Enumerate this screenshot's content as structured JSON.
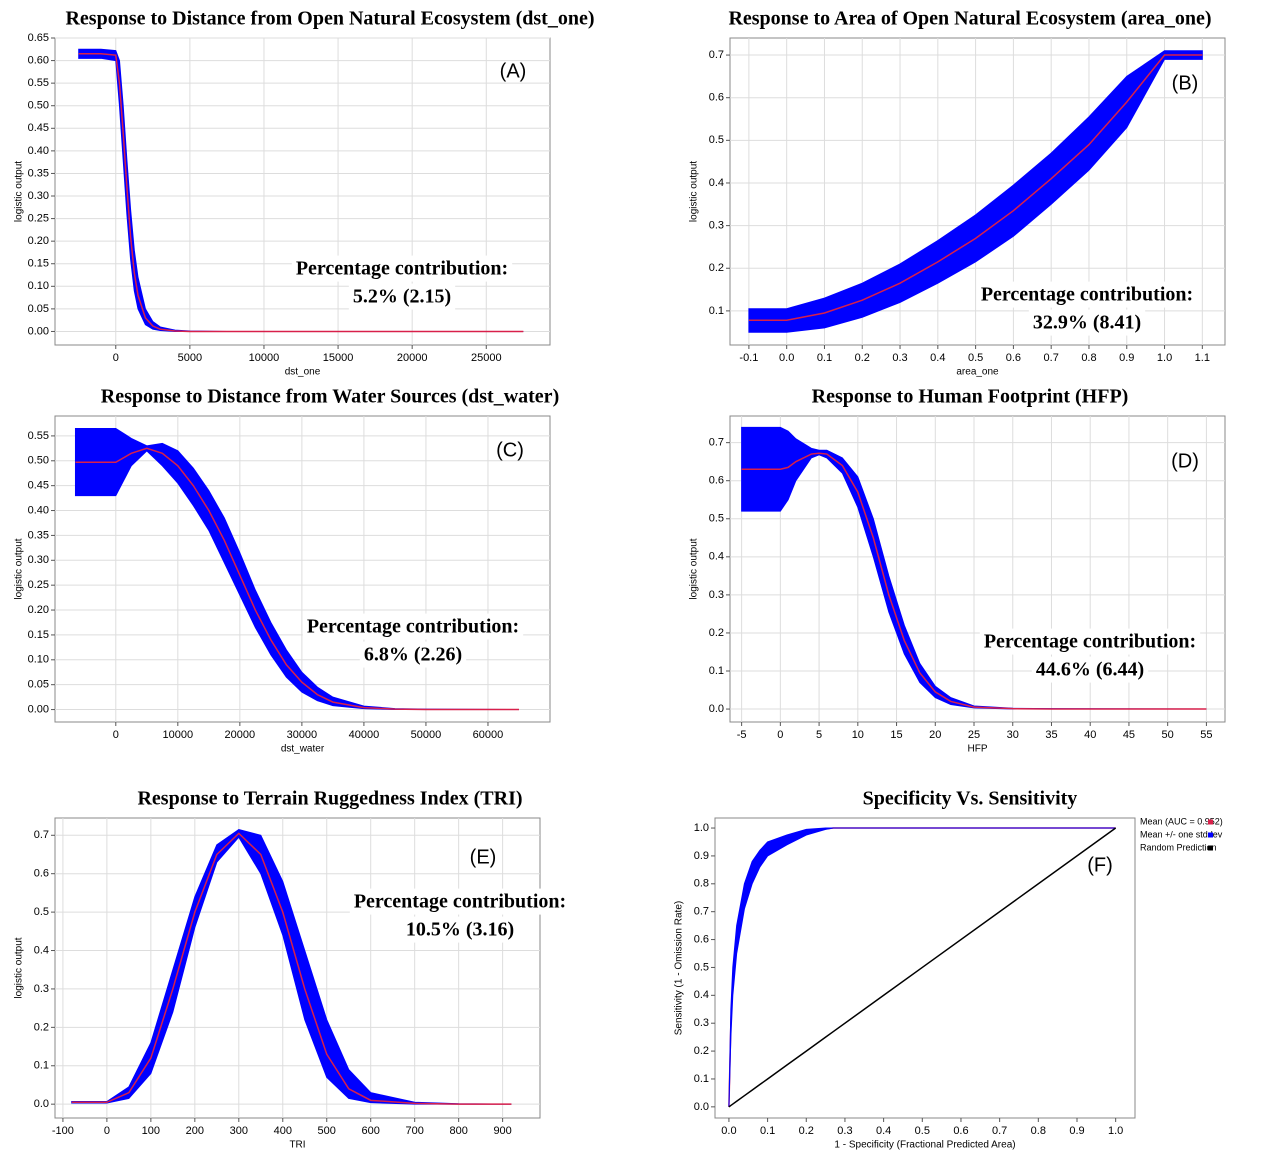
{
  "chart_data": [
    {
      "type": "line",
      "title": "Response to Distance from Open Natural Ecosystem (dst_one)",
      "xlabel": "dst_one",
      "ylabel": "logistic output",
      "panel_label": "(A)",
      "annotations": [
        "Percentage contribution:",
        "5.2% (2.15)"
      ],
      "grid": true,
      "xlim": [
        -4100,
        29300
      ],
      "xticks": [
        0,
        5000,
        10000,
        15000,
        20000,
        25000
      ],
      "ylim": [
        -0.03,
        0.65
      ],
      "yticks": [
        {
          "value": 0,
          "label": "0.00"
        },
        0.05,
        {
          "value": 0.1,
          "label": "0.10"
        },
        0.15,
        {
          "value": 0.2,
          "label": "0.20"
        },
        0.25,
        {
          "value": 0.3,
          "label": "0.30"
        },
        0.35,
        {
          "value": 0.4,
          "label": "0.40"
        },
        0.45,
        {
          "value": 0.5,
          "label": "0.50"
        },
        0.55,
        {
          "value": 0.6,
          "label": "0.60"
        },
        0.65
      ],
      "x": [
        -2500,
        -1000,
        0,
        250,
        500,
        750,
        1000,
        1250,
        1500,
        2000,
        2500,
        3000,
        4000,
        5000,
        7500,
        10000,
        15000,
        20000,
        25000,
        27500
      ],
      "series": [
        {
          "color": "#0000ff",
          "lower": [
            0.605,
            0.605,
            0.6,
            0.5,
            0.38,
            0.26,
            0.16,
            0.09,
            0.05,
            0.015,
            0.005,
            0.002,
            0,
            0,
            0,
            0,
            0,
            0,
            0,
            0
          ],
          "upper": [
            0.625,
            0.625,
            0.622,
            0.6,
            0.5,
            0.38,
            0.27,
            0.18,
            0.12,
            0.05,
            0.022,
            0.01,
            0.003,
            0.001,
            0,
            0,
            0,
            0,
            0,
            0
          ]
        },
        {
          "color": "#d8204a",
          "values": [
            0.615,
            0.615,
            0.612,
            0.55,
            0.44,
            0.32,
            0.21,
            0.13,
            0.08,
            0.03,
            0.012,
            0.005,
            0.001,
            0,
            0,
            0,
            0,
            0,
            0,
            0
          ]
        }
      ]
    },
    {
      "type": "line",
      "title": "Response to Area of Open Natural Ecosystem (area_one)",
      "xlabel": "area_one",
      "ylabel": "logistic output",
      "panel_label": "(B)",
      "annotations": [
        "Percentage contribution:",
        "32.9% (8.41)"
      ],
      "grid": true,
      "xlim": [
        -0.15,
        1.16
      ],
      "xticks": [
        -0.1,
        {
          "value": 0,
          "label": "0.0"
        },
        0.1,
        0.2,
        0.3,
        0.4,
        0.5,
        0.6,
        0.7,
        0.8,
        0.9,
        {
          "value": 1,
          "label": "1.0"
        },
        1.1
      ],
      "ylim": [
        0.02,
        0.74
      ],
      "yticks": [
        0.1,
        0.2,
        0.3,
        0.4,
        0.5,
        0.6,
        0.7
      ],
      "x": [
        -0.1,
        0,
        0.1,
        0.2,
        0.3,
        0.4,
        0.5,
        0.6,
        0.7,
        0.8,
        0.9,
        1,
        1.1
      ],
      "series": [
        {
          "color": "#0000ff",
          "lower": [
            0.05,
            0.05,
            0.06,
            0.085,
            0.12,
            0.165,
            0.215,
            0.275,
            0.35,
            0.43,
            0.53,
            0.69,
            0.69
          ],
          "upper": [
            0.105,
            0.105,
            0.13,
            0.165,
            0.21,
            0.265,
            0.325,
            0.395,
            0.47,
            0.555,
            0.65,
            0.71,
            0.71
          ]
        },
        {
          "color": "#d8204a",
          "values": [
            0.078,
            0.078,
            0.095,
            0.125,
            0.165,
            0.215,
            0.27,
            0.335,
            0.41,
            0.49,
            0.59,
            0.7,
            0.7
          ]
        }
      ]
    },
    {
      "type": "line",
      "title": "Response to Distance from Water Sources (dst_water)",
      "xlabel": "dst_water",
      "ylabel": "logistic output",
      "panel_label": "(C)",
      "annotations": [
        "Percentage contribution:",
        "6.8% (2.26)"
      ],
      "grid": true,
      "xlim": [
        -9800,
        70000
      ],
      "xticks": [
        0,
        10000,
        20000,
        30000,
        40000,
        50000,
        60000
      ],
      "ylim": [
        -0.025,
        0.59
      ],
      "yticks": [
        {
          "value": 0,
          "label": "0.00"
        },
        0.05,
        {
          "value": 0.1,
          "label": "0.10"
        },
        0.15,
        {
          "value": 0.2,
          "label": "0.20"
        },
        0.25,
        {
          "value": 0.3,
          "label": "0.30"
        },
        0.35,
        {
          "value": 0.4,
          "label": "0.40"
        },
        0.45,
        {
          "value": 0.5,
          "label": "0.50"
        },
        0.55
      ],
      "x": [
        -6500,
        0,
        2500,
        5000,
        7500,
        10000,
        12500,
        15000,
        17500,
        20000,
        22500,
        25000,
        27500,
        30000,
        32500,
        35000,
        40000,
        45000,
        50000,
        65000
      ],
      "series": [
        {
          "color": "#0000ff",
          "lower": [
            0.43,
            0.43,
            0.49,
            0.52,
            0.49,
            0.455,
            0.41,
            0.36,
            0.295,
            0.23,
            0.165,
            0.11,
            0.065,
            0.035,
            0.018,
            0.008,
            0.002,
            0,
            0,
            0
          ],
          "upper": [
            0.565,
            0.565,
            0.545,
            0.53,
            0.535,
            0.52,
            0.485,
            0.44,
            0.385,
            0.315,
            0.24,
            0.175,
            0.12,
            0.075,
            0.045,
            0.025,
            0.007,
            0.002,
            0.001,
            0
          ]
        },
        {
          "color": "#d8204a",
          "values": [
            0.497,
            0.497,
            0.515,
            0.525,
            0.515,
            0.49,
            0.45,
            0.4,
            0.34,
            0.27,
            0.2,
            0.14,
            0.09,
            0.055,
            0.03,
            0.015,
            0.004,
            0.001,
            0,
            0
          ]
        }
      ]
    },
    {
      "type": "line",
      "title": "Response to Human Footprint (HFP)",
      "xlabel": "HFP",
      "ylabel": "logistic output",
      "panel_label": "(D)",
      "annotations": [
        "Percentage contribution:",
        "44.6% (6.44)"
      ],
      "grid": true,
      "xlim": [
        -6.5,
        57.4
      ],
      "xticks": [
        -5,
        0,
        5,
        10,
        15,
        20,
        25,
        30,
        35,
        40,
        45,
        50,
        55
      ],
      "ylim": [
        -0.034,
        0.77
      ],
      "yticks": [
        {
          "value": 0,
          "label": "0.0"
        },
        0.1,
        0.2,
        0.3,
        0.4,
        0.5,
        0.6,
        0.7
      ],
      "x": [
        -5,
        0,
        1,
        2,
        4,
        5,
        6,
        8,
        10,
        12,
        14,
        16,
        18,
        20,
        22,
        25,
        30,
        35,
        55
      ],
      "series": [
        {
          "color": "#0000ff",
          "lower": [
            0.52,
            0.52,
            0.55,
            0.6,
            0.66,
            0.668,
            0.66,
            0.62,
            0.53,
            0.4,
            0.255,
            0.145,
            0.07,
            0.03,
            0.012,
            0.003,
            0,
            0,
            0
          ],
          "upper": [
            0.74,
            0.74,
            0.73,
            0.71,
            0.685,
            0.68,
            0.68,
            0.66,
            0.61,
            0.5,
            0.35,
            0.22,
            0.12,
            0.06,
            0.03,
            0.008,
            0.002,
            0.001,
            0
          ]
        },
        {
          "color": "#d8204a",
          "values": [
            0.63,
            0.63,
            0.635,
            0.65,
            0.67,
            0.672,
            0.67,
            0.64,
            0.57,
            0.45,
            0.3,
            0.18,
            0.095,
            0.045,
            0.02,
            0.005,
            0.001,
            0,
            0
          ]
        }
      ]
    },
    {
      "type": "line",
      "title": "Response to Terrain Ruggedness Index (TRI)",
      "xlabel": "TRI",
      "ylabel": "logistic output",
      "panel_label": "(E)",
      "annotations": [
        "Percentage contribution:",
        "10.5% (3.16)"
      ],
      "grid": true,
      "xlim": [
        -118,
        985
      ],
      "xticks": [
        -100,
        0,
        100,
        200,
        300,
        400,
        500,
        600,
        700,
        800,
        900
      ],
      "ylim": [
        -0.036,
        0.745
      ],
      "yticks": [
        {
          "value": 0,
          "label": "0.0"
        },
        0.1,
        0.2,
        0.3,
        0.4,
        0.5,
        0.6,
        0.7
      ],
      "x": [
        -80,
        0,
        50,
        100,
        150,
        200,
        250,
        300,
        350,
        400,
        450,
        500,
        550,
        600,
        700,
        800,
        920
      ],
      "series": [
        {
          "color": "#0000ff",
          "lower": [
            0.003,
            0.003,
            0.015,
            0.08,
            0.24,
            0.46,
            0.63,
            0.695,
            0.6,
            0.44,
            0.22,
            0.07,
            0.015,
            0.004,
            0,
            0,
            0
          ],
          "upper": [
            0.007,
            0.007,
            0.045,
            0.16,
            0.35,
            0.54,
            0.675,
            0.715,
            0.7,
            0.58,
            0.4,
            0.22,
            0.09,
            0.03,
            0.005,
            0.001,
            0
          ]
        },
        {
          "color": "#d8204a",
          "values": [
            0.005,
            0.005,
            0.03,
            0.12,
            0.3,
            0.5,
            0.65,
            0.705,
            0.65,
            0.5,
            0.3,
            0.13,
            0.04,
            0.01,
            0.002,
            0,
            0
          ]
        }
      ]
    },
    {
      "type": "line",
      "title": "Specificity Vs. Sensitivity",
      "xlabel": "1 - Specificity (Fractional Predicted Area)",
      "ylabel": "Sensitivity (1 - Omission Rate)",
      "panel_label": "(F)",
      "grid": false,
      "xlim": [
        -0.036,
        1.05
      ],
      "xticks": [
        {
          "value": 0,
          "label": "0.0"
        },
        0.1,
        0.2,
        0.3,
        0.4,
        0.5,
        0.6,
        0.7,
        0.8,
        0.9,
        {
          "value": 1,
          "label": "1.0"
        }
      ],
      "ylim": [
        -0.04,
        1.036
      ],
      "yticks": [
        {
          "value": 0,
          "label": "0.0"
        },
        0.1,
        0.2,
        0.3,
        0.4,
        0.5,
        0.6,
        0.7,
        0.8,
        0.9,
        {
          "value": 1,
          "label": "1.0"
        }
      ],
      "x": [
        0,
        0.005,
        0.01,
        0.02,
        0.04,
        0.06,
        0.08,
        0.1,
        0.15,
        0.2,
        0.25,
        0.27,
        0.5,
        1
      ],
      "series": [
        {
          "name": "Mean (AUC = 0.952)",
          "color": "#d8204a",
          "values": [
            0,
            0.3,
            0.45,
            0.6,
            0.76,
            0.84,
            0.89,
            0.92,
            0.96,
            0.985,
            0.997,
            1,
            1,
            1
          ]
        },
        {
          "name": "Mean +/- one stddev",
          "color": "#0000ff",
          "lower": [
            0,
            0.25,
            0.4,
            0.55,
            0.71,
            0.8,
            0.86,
            0.9,
            0.94,
            0.975,
            0.995,
            1,
            1,
            1
          ],
          "upper": [
            0,
            0.35,
            0.5,
            0.65,
            0.8,
            0.88,
            0.92,
            0.95,
            0.975,
            0.995,
            1,
            1,
            1,
            1
          ]
        },
        {
          "name": "Random Prediction",
          "color": "#000000",
          "values": [
            0,
            0.005,
            0.01,
            0.02,
            0.04,
            0.06,
            0.08,
            0.1,
            0.15,
            0.2,
            0.25,
            0.27,
            0.5,
            1
          ]
        }
      ]
    }
  ]
}
